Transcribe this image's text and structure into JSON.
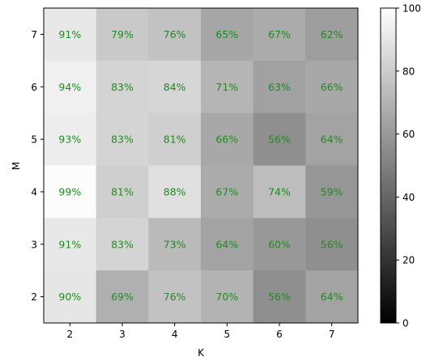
{
  "chart_data": {
    "type": "heatmap",
    "title": "",
    "xlabel": "K",
    "ylabel": "M",
    "x_categories": [
      "2",
      "3",
      "4",
      "5",
      "6",
      "7"
    ],
    "y_categories": [
      "7",
      "6",
      "5",
      "4",
      "3",
      "2"
    ],
    "values": [
      [
        91,
        79,
        76,
        65,
        67,
        62
      ],
      [
        94,
        83,
        84,
        71,
        63,
        66
      ],
      [
        93,
        83,
        81,
        66,
        56,
        64
      ],
      [
        99,
        81,
        88,
        67,
        74,
        59
      ],
      [
        91,
        83,
        73,
        64,
        60,
        56
      ],
      [
        90,
        69,
        76,
        70,
        56,
        64
      ]
    ],
    "cell_labels": [
      [
        "91%",
        "79%",
        "76%",
        "65%",
        "67%",
        "62%"
      ],
      [
        "94%",
        "83%",
        "84%",
        "71%",
        "63%",
        "66%"
      ],
      [
        "93%",
        "83%",
        "81%",
        "66%",
        "56%",
        "64%"
      ],
      [
        "99%",
        "81%",
        "88%",
        "67%",
        "74%",
        "59%"
      ],
      [
        "91%",
        "83%",
        "73%",
        "64%",
        "60%",
        "56%"
      ],
      [
        "90%",
        "69%",
        "76%",
        "70%",
        "56%",
        "64%"
      ]
    ],
    "label_color": "#1e8c1e",
    "colormap": "gray",
    "vmin": 0,
    "vmax": 100,
    "colorbar": {
      "ticks": [
        0,
        20,
        40,
        60,
        80,
        100
      ],
      "tick_labels": [
        "0",
        "20",
        "40",
        "60",
        "80",
        "100"
      ],
      "placement": "right"
    }
  }
}
